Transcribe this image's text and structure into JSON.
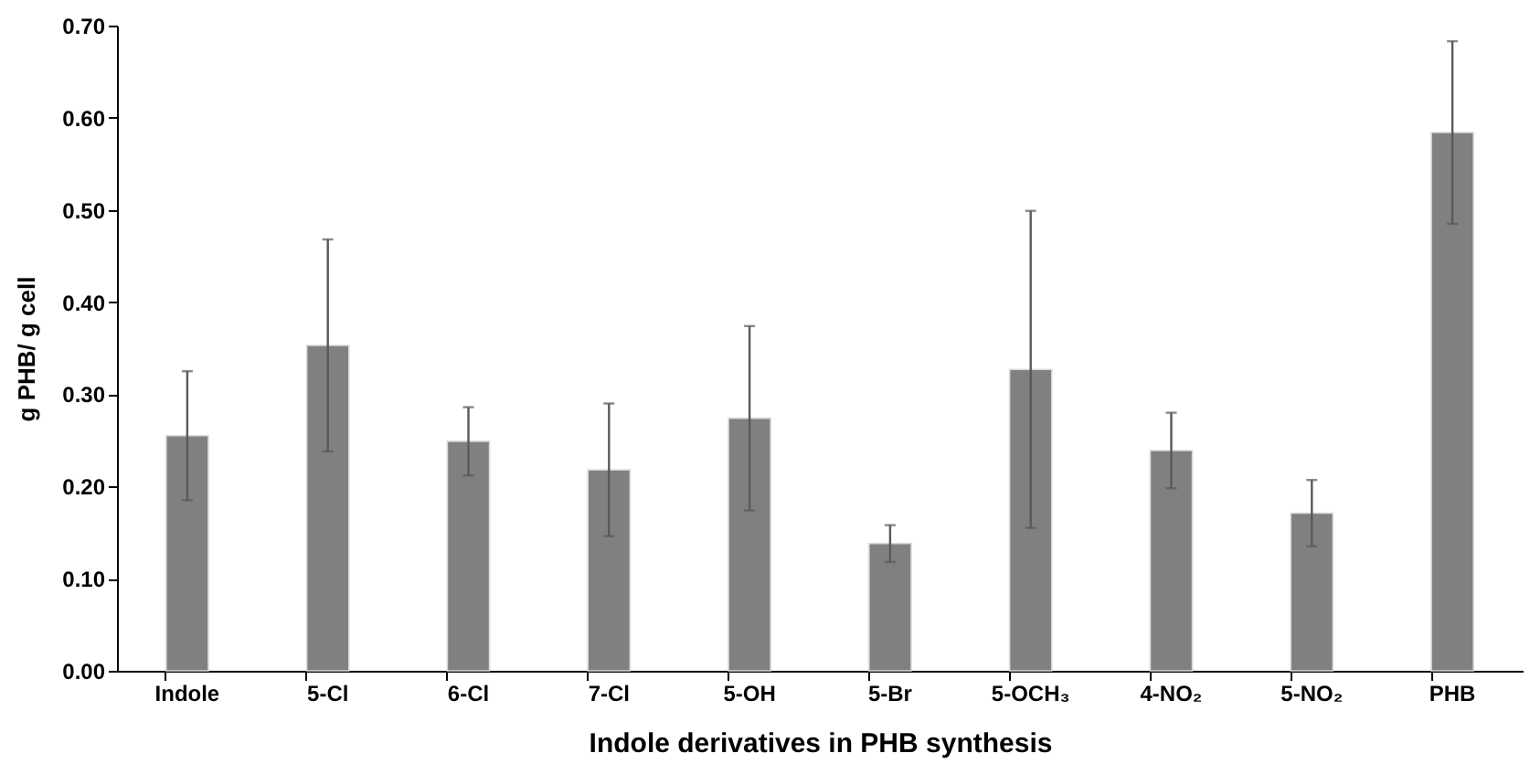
{
  "chart_data": {
    "type": "bar",
    "xlabel": "Indole derivatives in PHB synthesis",
    "ylabel": "g PHB/ g cell",
    "categories": [
      "Indole",
      "5-Cl",
      "6-Cl",
      "7-Cl",
      "5-OH",
      "5-Br",
      "5-OCH₃",
      "4-NO₂",
      "5-NO₂",
      "PHB"
    ],
    "series": [
      {
        "color": "#808080",
        "values": [
          0.255,
          0.353,
          0.249,
          0.218,
          0.274,
          0.138,
          0.327,
          0.239,
          0.171,
          0.584
        ],
        "errors": [
          0.07,
          0.115,
          0.037,
          0.072,
          0.1,
          0.02,
          0.172,
          0.041,
          0.036,
          0.099
        ]
      }
    ],
    "ylim": [
      0,
      0.7
    ],
    "yticks": [
      {
        "value": 0,
        "label": "0.00"
      },
      {
        "value": 0.1,
        "label": "0.10"
      },
      {
        "value": 0.2,
        "label": "0.20"
      },
      {
        "value": 0.3,
        "label": "0.30"
      },
      {
        "value": 0.4,
        "label": "0.40"
      },
      {
        "value": 0.5,
        "label": "0.50"
      },
      {
        "value": 0.6,
        "label": "0.60"
      },
      {
        "value": 0.7,
        "label": "0.70"
      }
    ],
    "grid": false
  }
}
